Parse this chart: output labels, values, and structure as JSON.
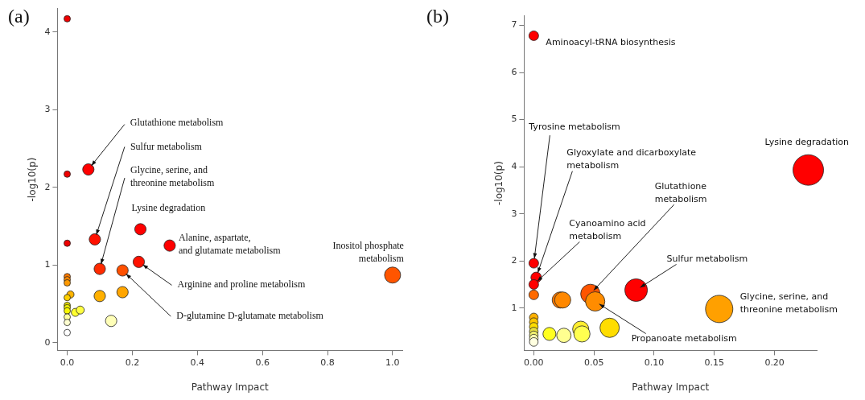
{
  "chart_data": [
    {
      "type": "bubble",
      "title": "(a)",
      "xlabel": "Pathway Impact",
      "ylabel": "-log10(p)",
      "xlim": [
        -0.03,
        1.03
      ],
      "xticks": [
        {
          "value": 0,
          "label": "0.0"
        },
        0.2,
        0.4,
        0.6,
        0.8,
        {
          "value": 1,
          "label": "1.0"
        }
      ],
      "ylim": [
        -0.1,
        4.3
      ],
      "yticks": [
        0,
        1,
        2,
        3,
        4
      ],
      "grid": false,
      "legend": false,
      "series": [
        {
          "x": [
            0,
            0,
            0.065,
            0,
            0.085,
            0.225,
            0.315,
            0.22,
            0.1,
            0.17,
            1.0,
            0.1,
            0.17,
            0.135,
            0,
            0,
            0,
            0.01,
            0,
            0,
            0,
            0,
            0.025,
            0.04,
            0,
            0,
            0
          ],
          "values": [
            4.17,
            2.17,
            2.23,
            1.28,
            1.33,
            1.46,
            1.25,
            1.04,
            0.95,
            0.93,
            0.87,
            0.6,
            0.65,
            0.28,
            0.85,
            0.81,
            0.77,
            0.62,
            0.58,
            0.48,
            0.45,
            0.41,
            0.39,
            0.42,
            0.33,
            0.26,
            0.13
          ],
          "sizes": [
            0.16,
            0.16,
            0.5,
            0.16,
            0.5,
            0.5,
            0.5,
            0.5,
            0.5,
            0.5,
            1,
            0.5,
            0.5,
            0.5,
            0.16,
            0.16,
            0.16,
            0.2,
            0.16,
            0.16,
            0.16,
            0.16,
            0.25,
            0.25,
            0.16,
            0.16,
            0.16
          ],
          "colors": [
            "#ee0000",
            "#ee0000",
            "#ff0000",
            "#ee0000",
            "#ff1100",
            "#ff0000",
            "#ff0000",
            "#ff1100",
            "#ff2a00",
            "#ff5000",
            "#ff5500",
            "#ffb000",
            "#ffa500",
            "#ffffb8",
            "#ff7a00",
            "#ff8800",
            "#ff9900",
            "#ffb400",
            "#ffd000",
            "#e8e000",
            "#f0f000",
            "#f8f800",
            "#ffff30",
            "#ffff40",
            "#ffffa0",
            "#ffffd0",
            "#ffffff"
          ]
        }
      ],
      "annotations": [
        {
          "text": "Glutathione metabolism",
          "x": 0.065,
          "y": 2.23
        },
        {
          "text": "Sulfur metabolism",
          "x": 0.085,
          "y": 1.33
        },
        {
          "text": "Glycine, serine, and threonine metabolism",
          "x": 0.1,
          "y": 0.95
        },
        {
          "text": "Lysine degradation",
          "x": 0.225,
          "y": 1.46
        },
        {
          "text": "Alanine, aspartate, and glutamate metabolism",
          "x": 0.315,
          "y": 1.25
        },
        {
          "text": "Inositol phosphate metabolism",
          "x": 1.0,
          "y": 0.87
        },
        {
          "text": "Arginine and proline metabolism",
          "x": 0.22,
          "y": 1.04
        },
        {
          "text": "D-glutamine D-glutamate metabolism",
          "x": 0.17,
          "y": 0.93
        }
      ]
    },
    {
      "type": "bubble",
      "title": "(b)",
      "xlabel": "Pathway Impact",
      "ylabel": "-log10(p)",
      "xlim": [
        -0.008,
        0.235
      ],
      "xticks": [
        {
          "value": 0,
          "label": "0.00"
        },
        0.05,
        {
          "value": 0.1,
          "label": "0.10"
        },
        0.15,
        {
          "value": 0.2,
          "label": "0.20"
        }
      ],
      "ylim": [
        0.1,
        7.2
      ],
      "yticks": [
        1,
        2,
        3,
        4,
        5,
        6,
        7
      ],
      "grid": false,
      "legend": false,
      "series": [
        {
          "x": [
            0,
            0,
            0.002,
            0,
            0,
            0.022,
            0.024,
            0.047,
            0.051,
            0.085,
            0.228,
            0.154,
            0.063,
            0.039,
            0.04,
            0.025,
            0.013,
            0,
            0,
            0,
            0,
            0,
            0,
            0
          ],
          "values": [
            6.78,
            1.95,
            1.65,
            1.5,
            1.28,
            1.17,
            1.17,
            1.3,
            1.14,
            1.38,
            3.93,
            0.98,
            0.58,
            0.55,
            0.45,
            0.42,
            0.45,
            0.8,
            0.7,
            0.6,
            0.5,
            0.42,
            0.35,
            0.28
          ],
          "sizes": [
            0.1,
            0.1,
            0.12,
            0.1,
            0.1,
            0.28,
            0.28,
            0.4,
            0.4,
            0.55,
            1,
            0.8,
            0.4,
            0.28,
            0.28,
            0.22,
            0.18,
            0.08,
            0.08,
            0.08,
            0.08,
            0.08,
            0.08,
            0.08
          ],
          "colors": [
            "#ff0000",
            "#ff0000",
            "#ff0000",
            "#ff0000",
            "#ff6a00",
            "#ff7a00",
            "#ff8800",
            "#ff5500",
            "#ff8c00",
            "#ff0000",
            "#ff0000",
            "#ffa000",
            "#ffdd00",
            "#ffee30",
            "#ffff50",
            "#ffff90",
            "#ffff20",
            "#ffb000",
            "#ffc800",
            "#ffdd00",
            "#e8e040",
            "#f0f070",
            "#ffffb0",
            "#ffffe0"
          ]
        }
      ],
      "annotations": [
        {
          "text": "Aminoacyl-tRNA biosynthesis",
          "x": 0,
          "y": 6.78
        },
        {
          "text": "Tyrosine metabolism",
          "x": 0,
          "y": 1.95
        },
        {
          "text": "Glyoxylate and dicarboxylate metabolism",
          "x": 0.002,
          "y": 1.65
        },
        {
          "text": "Cyanoamino acid metabolism",
          "x": 0,
          "y": 1.5
        },
        {
          "text": "Glutathione metabolism",
          "x": 0.047,
          "y": 1.3
        },
        {
          "text": "Sulfur metabolism",
          "x": 0.085,
          "y": 1.38
        },
        {
          "text": "Lysine degradation",
          "x": 0.228,
          "y": 3.93
        },
        {
          "text": "Glycine, serine, and threonine metabolism",
          "x": 0.154,
          "y": 0.98
        },
        {
          "text": "Propanoate metabolism",
          "x": 0.051,
          "y": 1.14
        }
      ]
    }
  ]
}
